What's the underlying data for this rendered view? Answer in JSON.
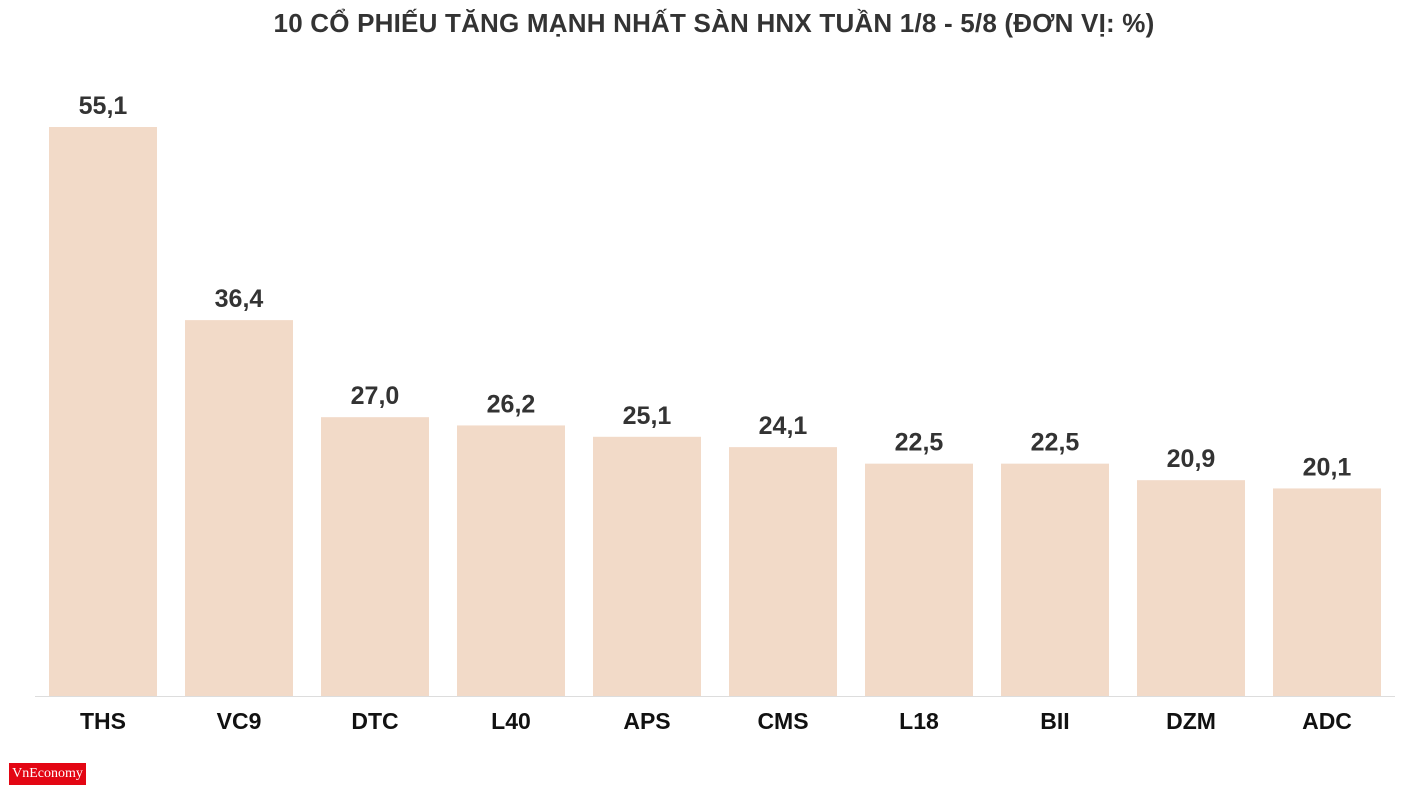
{
  "chart_data": {
    "type": "bar",
    "title": "10 CỔ PHIẾU TĂNG MẠNH NHẤT SÀN HNX TUẦN 1/8 - 5/8 (ĐƠN VỊ: %)",
    "categories": [
      "THS",
      "VC9",
      "DTC",
      "L40",
      "APS",
      "CMS",
      "L18",
      "BII",
      "DZM",
      "ADC"
    ],
    "values": [
      55.1,
      36.4,
      27.0,
      26.2,
      25.1,
      24.1,
      22.5,
      22.5,
      20.9,
      20.1
    ],
    "value_labels": [
      "55,1",
      "36,4",
      "27,0",
      "26,2",
      "25,1",
      "24,1",
      "22,5",
      "22,5",
      "20,9",
      "20,1"
    ],
    "xlabel": "",
    "ylabel": "",
    "ylim": [
      0,
      55.1
    ],
    "grid": false,
    "legend": "none",
    "bar_color": "#f2dac8"
  },
  "logo": {
    "text": "VnEconomy"
  }
}
